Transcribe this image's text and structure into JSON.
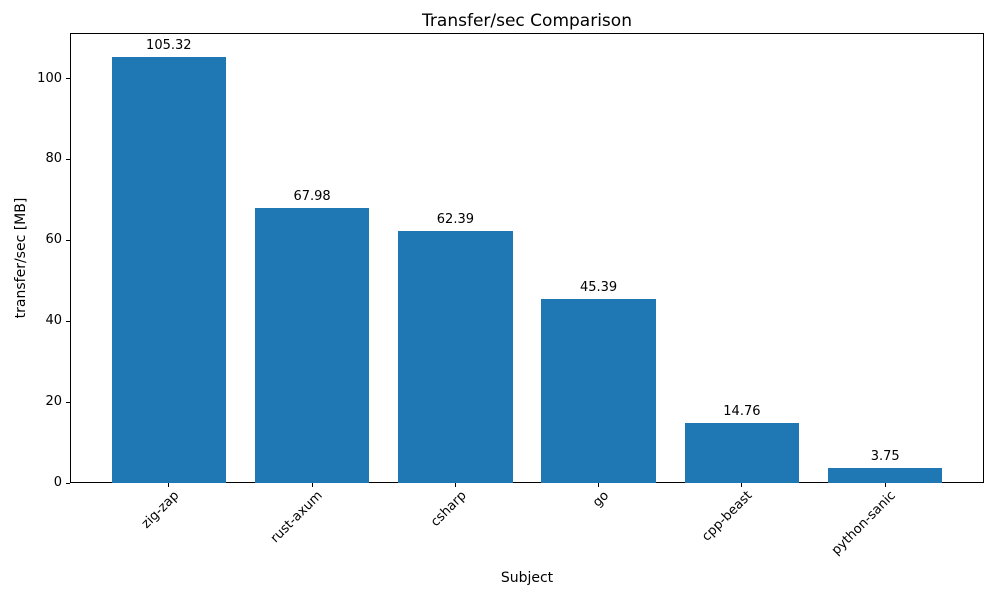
{
  "chart_data": {
    "type": "bar",
    "title": "Transfer/sec Comparison",
    "xlabel": "Subject",
    "ylabel": "transfer/sec [MB]",
    "categories": [
      "zig-zap",
      "rust-axum",
      "csharp",
      "go",
      "cpp-beast",
      "python-sanic"
    ],
    "values": [
      105.32,
      67.98,
      62.39,
      45.39,
      14.76,
      3.75
    ],
    "value_label_decimals": 2,
    "yticks": [
      0,
      20,
      40,
      60,
      80,
      100
    ],
    "ylim": [
      0,
      111.26
    ],
    "bar_color": "#1f77b4",
    "axis_color": "#000000",
    "background_color": "#ffffff",
    "grid": false,
    "legend": null,
    "x_tick_rotation_deg": 45
  }
}
